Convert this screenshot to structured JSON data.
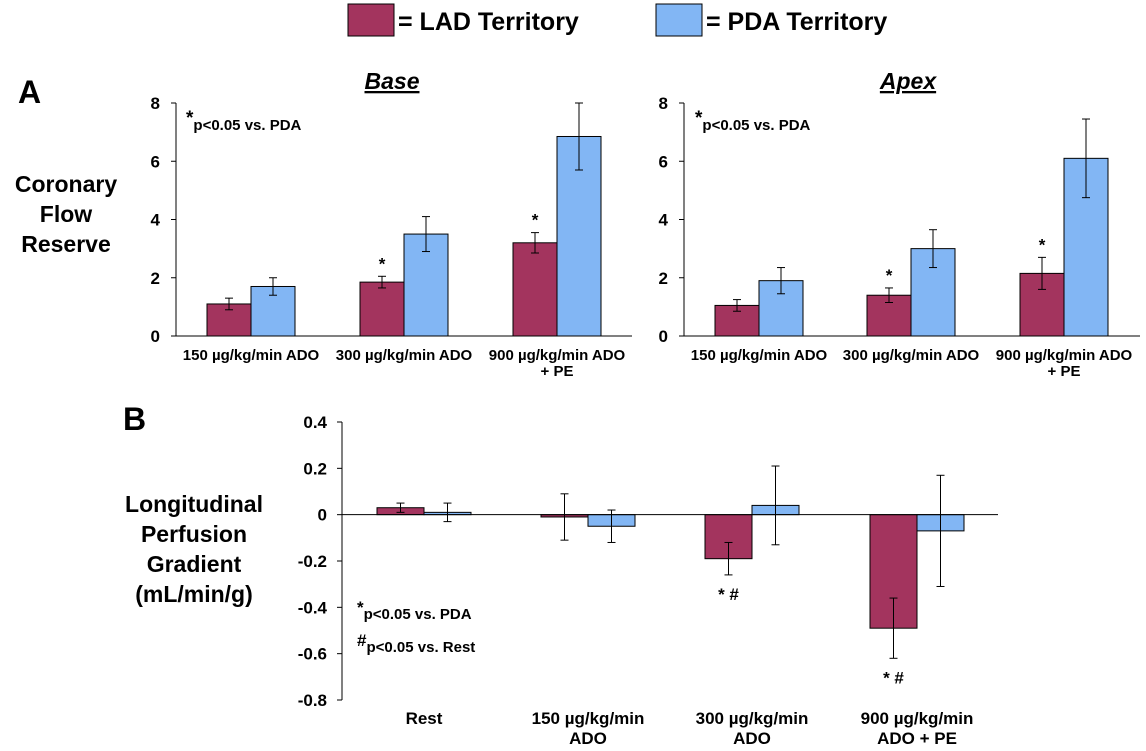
{
  "colors": {
    "lad": "#A3345E",
    "pda": "#82B6F4"
  },
  "legend": [
    {
      "label": "= LAD Territory",
      "color": "#A3345E"
    },
    {
      "label": "= PDA Territory",
      "color": "#82B6F4"
    }
  ],
  "chart_data": [
    {
      "id": "A-base",
      "type": "bar",
      "panel_label": "A",
      "title": "Base",
      "ylabel": [
        "Coronary",
        "Flow",
        "Reserve"
      ],
      "ylim": [
        0,
        8
      ],
      "yticks": [
        "0",
        "2",
        "4",
        "6",
        "8"
      ],
      "annotation": {
        "star": "*",
        "text": "p<0.05 vs. PDA"
      },
      "categories": [
        [
          "150 µg/kg/min ADO"
        ],
        [
          "300 µg/kg/min ADO"
        ],
        [
          "900 µg/kg/min ADO",
          "+ PE"
        ]
      ],
      "series": [
        {
          "name": "LAD Territory",
          "values": [
            1.1,
            1.85,
            3.2
          ],
          "err": [
            0.2,
            0.2,
            0.35
          ],
          "marks": [
            "",
            "*",
            "*"
          ]
        },
        {
          "name": "PDA Territory",
          "values": [
            1.7,
            3.5,
            6.85
          ],
          "err": [
            0.3,
            0.6,
            1.15
          ],
          "marks": [
            "",
            "",
            ""
          ]
        }
      ]
    },
    {
      "id": "A-apex",
      "type": "bar",
      "title": "Apex",
      "ylim": [
        0,
        8
      ],
      "yticks": [
        "0",
        "2",
        "4",
        "6",
        "8"
      ],
      "annotation": {
        "star": "*",
        "text": "p<0.05 vs. PDA"
      },
      "categories": [
        [
          "150 µg/kg/min ADO"
        ],
        [
          "300 µg/kg/min ADO"
        ],
        [
          "900 µg/kg/min ADO",
          "+ PE"
        ]
      ],
      "series": [
        {
          "name": "LAD Territory",
          "values": [
            1.05,
            1.4,
            2.15
          ],
          "err": [
            0.2,
            0.25,
            0.55
          ],
          "marks": [
            "",
            "*",
            "*"
          ]
        },
        {
          "name": "PDA Territory",
          "values": [
            1.9,
            3.0,
            6.1
          ],
          "err": [
            0.45,
            0.65,
            1.35
          ],
          "marks": [
            "",
            "",
            ""
          ]
        }
      ]
    },
    {
      "id": "B",
      "type": "bar",
      "panel_label": "B",
      "ylabel": [
        "Longitudinal",
        "Perfusion",
        "Gradient",
        "(mL/min/g)"
      ],
      "ylim": [
        -0.8,
        0.4
      ],
      "yticks": [
        "-0.8",
        "-0.6",
        "-0.4",
        "-0.2",
        "0",
        "0.2",
        "0.4"
      ],
      "annotations": [
        {
          "star": "*",
          "text": "p<0.05 vs. PDA"
        },
        {
          "star": "#",
          "text": "p<0.05 vs. Rest"
        }
      ],
      "categories": [
        [
          "Rest"
        ],
        [
          "150 µg/kg/min",
          "ADO"
        ],
        [
          "300 µg/kg/min",
          "ADO"
        ],
        [
          "900 µg/kg/min",
          "ADO + PE"
        ]
      ],
      "series": [
        {
          "name": "LAD Territory",
          "values": [
            0.03,
            -0.01,
            -0.19,
            -0.49
          ],
          "err": [
            0.02,
            0.1,
            0.07,
            0.13
          ],
          "marks": [
            "",
            "",
            "* #",
            "* #"
          ]
        },
        {
          "name": "PDA Territory",
          "values": [
            0.01,
            -0.05,
            0.04,
            -0.07
          ],
          "err": [
            0.04,
            0.07,
            0.17,
            0.24
          ],
          "marks": [
            "",
            "",
            "",
            ""
          ]
        }
      ]
    }
  ]
}
